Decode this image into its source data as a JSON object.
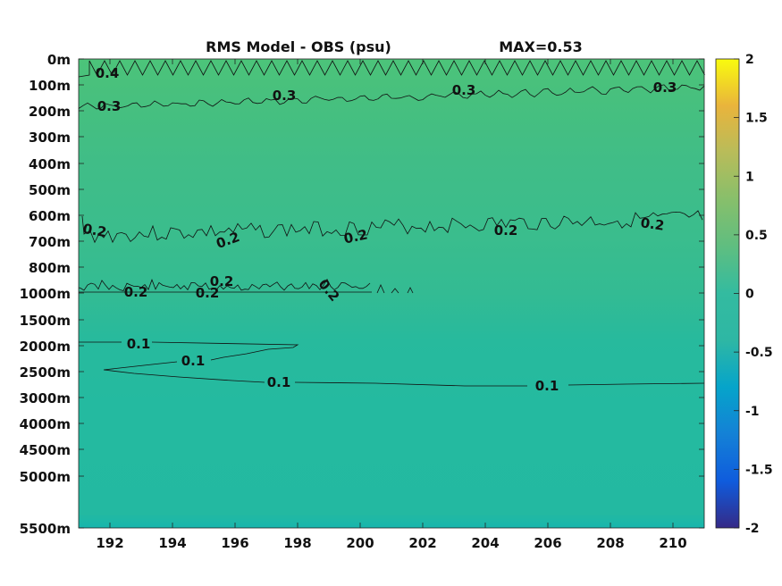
{
  "chart_data": {
    "type": "heatmap",
    "title": "RMS Model - OBS (psu)",
    "annotation": "MAX=0.53",
    "xlabel": "",
    "ylabel": "",
    "x_ticks": [
      "192",
      "194",
      "196",
      "198",
      "200",
      "202",
      "204",
      "206",
      "208",
      "210"
    ],
    "x_tick_values": [
      192,
      194,
      196,
      198,
      200,
      202,
      204,
      206,
      208,
      210
    ],
    "xlim": [
      191,
      211
    ],
    "y_ticks": [
      "0m",
      "100m",
      "200m",
      "300m",
      "400m",
      "500m",
      "600m",
      "700m",
      "800m",
      "1000m",
      "1500m",
      "2000m",
      "2500m",
      "3000m",
      "4000m",
      "4500m",
      "5000m",
      "5500m"
    ],
    "colorbar": {
      "colormap": "parula",
      "range": [
        -2,
        2
      ],
      "ticks": [
        "2",
        "1.5",
        "1",
        "0.5",
        "0",
        "-0.5",
        "-1",
        "-1.5",
        "-2"
      ],
      "tick_values": [
        2,
        1.5,
        1,
        0.5,
        0,
        -0.5,
        -1,
        -1.5,
        -2
      ]
    },
    "contour_labels": [
      {
        "text": "0.4",
        "x": 192.0,
        "level": "100m"
      },
      {
        "text": "0.3",
        "x": 192.0,
        "level": "200m"
      },
      {
        "text": "0.3",
        "x": 197.6,
        "level": "100m"
      },
      {
        "text": "0.3",
        "x": 204.5,
        "level": "100m"
      },
      {
        "text": "0.3",
        "x": 210.6,
        "level": "100m"
      },
      {
        "text": "0.2",
        "x": 191.5,
        "level": "700m"
      },
      {
        "text": "0.2",
        "x": 196.8,
        "level": "700m"
      },
      {
        "text": "0.2",
        "x": 200.8,
        "level": "700m"
      },
      {
        "text": "0.2",
        "x": 205.5,
        "level": "700m"
      },
      {
        "text": "0.2",
        "x": 209.7,
        "level": "700m"
      },
      {
        "text": "0.2",
        "x": 193.7,
        "level": "1000m"
      },
      {
        "text": "0.2",
        "x": 196.3,
        "level": "1000m"
      },
      {
        "text": "0.2",
        "x": 196.5,
        "level": "800m"
      },
      {
        "text": "0.2",
        "x": 199.2,
        "level": "1000m"
      },
      {
        "text": "0.1",
        "x": 193.8,
        "level": "2000m"
      },
      {
        "text": "0.1",
        "x": 194.8,
        "level": "2500m"
      },
      {
        "text": "0.1",
        "x": 197.5,
        "level": "3000m"
      },
      {
        "text": "0.1",
        "x": 206.8,
        "level": "3000m"
      }
    ]
  }
}
